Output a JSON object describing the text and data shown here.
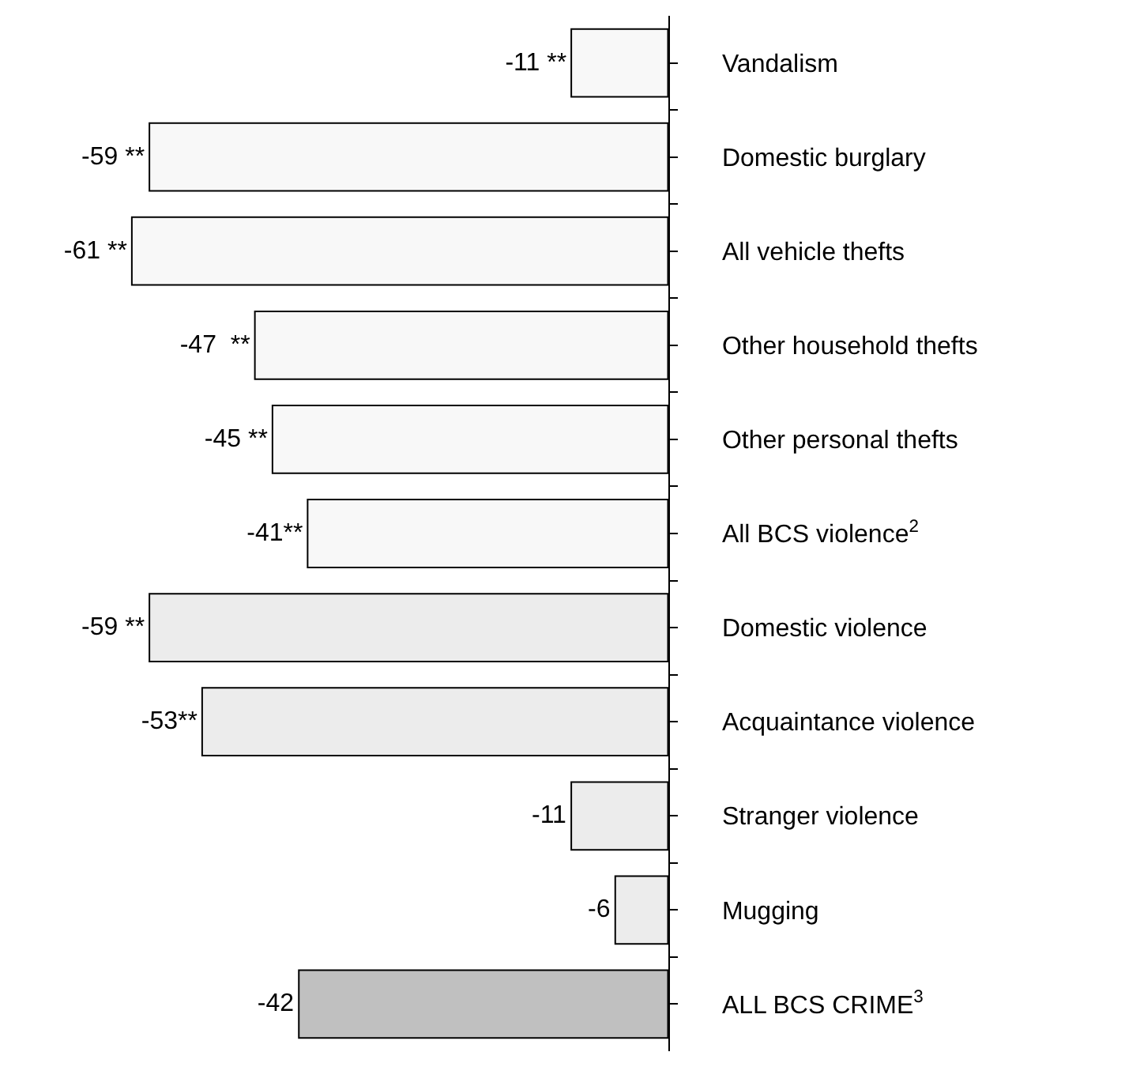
{
  "chart_data": {
    "type": "bar",
    "orientation": "horizontal",
    "categories": [
      "Vandalism",
      "Domestic burglary",
      "All vehicle thefts",
      "Other household thefts",
      "Other personal thefts",
      "All BCS violence$^{2}$",
      "Domestic violence",
      "Acquaintance violence",
      "Stranger violence",
      "Mugging",
      "ALL BCS CRIME$^{3}$"
    ],
    "values": [
      -11,
      -59,
      -61,
      -47,
      -45,
      -41,
      -59,
      -53,
      -11,
      -6,
      -42
    ],
    "colors": [
      "#f8f8f8",
      "#f8f8f8",
      "#f8f8f8",
      "#f8f8f8",
      "#f8f8f8",
      "#f8f8f8",
      "#ececec",
      "#ececec",
      "#ececec",
      "#ececec",
      "#c0c0c0"
    ],
    "value_labels": [
      "-11 **",
      "-59 **",
      "-61 **",
      "-47  **",
      "-45 **",
      "-41**",
      "-59 **",
      "-53**",
      "-11",
      "-6",
      "-42"
    ],
    "xlim": [
      -76,
      52
    ]
  }
}
